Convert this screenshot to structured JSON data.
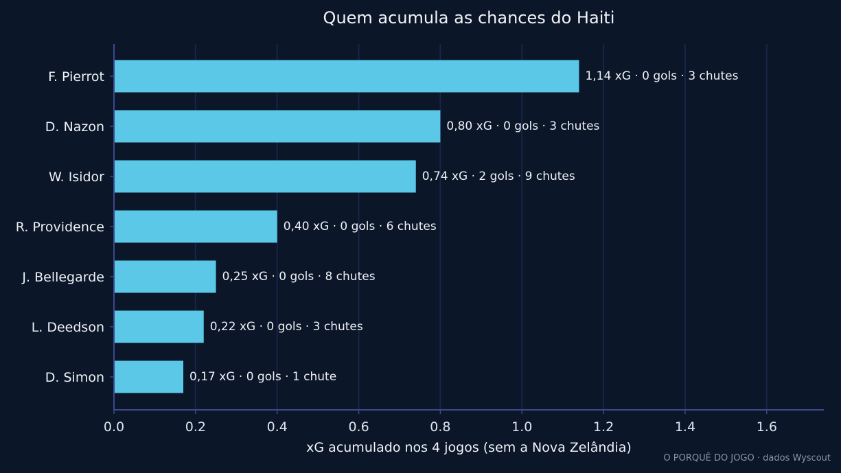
{
  "colors": {
    "background": "#0b1628",
    "bar": "#5ac8e6",
    "axis": "#3a4a8c",
    "grid": "#18244a",
    "text": "#eef1f6",
    "credit": "#8a95a8"
  },
  "chart_data": {
    "type": "bar",
    "orientation": "horizontal",
    "title": "Quem acumula as chances do Haiti",
    "xlabel": "xG acumulado nos 4 jogos (sem a Nova Zelândia)",
    "ylabel": "",
    "xlim": [
      0,
      1.74
    ],
    "xticks": [
      "0.0",
      "0.2",
      "0.4",
      "0.6",
      "0.8",
      "1.0",
      "1.2",
      "1.4",
      "1.6"
    ],
    "grid": "vertical",
    "categories": [
      "F. Pierrot",
      "D. Nazon",
      "W. Isidor",
      "R. Providence",
      "J. Bellegarde",
      "L. Deedson",
      "D. Simon"
    ],
    "values": [
      1.14,
      0.8,
      0.74,
      0.4,
      0.25,
      0.22,
      0.17
    ],
    "data_labels": [
      "1,14 xG · 0 gols · 3 chutes",
      "0,80 xG · 0 gols · 3 chutes",
      "0,74 xG · 2 gols · 9 chutes",
      "0,40 xG · 0 gols · 6 chutes",
      "0,25 xG · 0 gols · 8 chutes",
      "0,22 xG · 0 gols · 3 chutes",
      "0,17 xG · 0 gols · 1 chute"
    ],
    "credit": "O PORQUÊ DO JOGO · dados Wyscout"
  }
}
